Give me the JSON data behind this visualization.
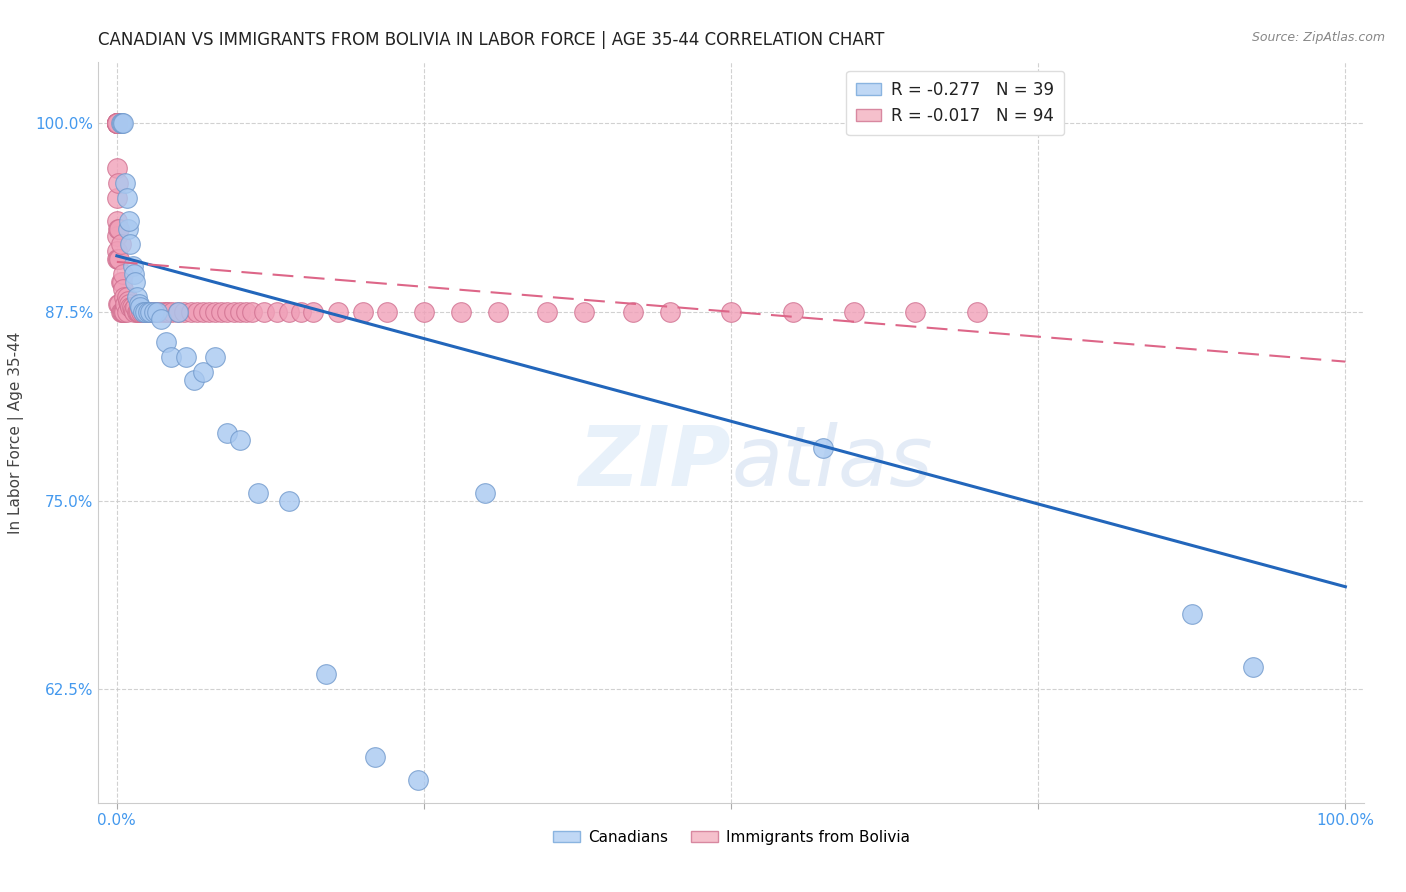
{
  "title": "CANADIAN VS IMMIGRANTS FROM BOLIVIA IN LABOR FORCE | AGE 35-44 CORRELATION CHART",
  "source": "Source: ZipAtlas.com",
  "ylabel": "In Labor Force | Age 35-44",
  "legend_r_blue": "R = -0.277",
  "legend_n_blue": "N = 39",
  "legend_r_pink": "R = -0.017",
  "legend_n_pink": "N = 94",
  "blue_color": "#a8c8f0",
  "blue_edge": "#7099cc",
  "pink_color": "#f0a0b8",
  "pink_edge": "#d07090",
  "trend_blue_color": "#2266bb",
  "trend_pink_color": "#dd6688",
  "canadians_x": [
    0.003,
    0.004,
    0.005,
    0.007,
    0.008,
    0.009,
    0.01,
    0.011,
    0.013,
    0.014,
    0.015,
    0.016,
    0.018,
    0.019,
    0.021,
    0.023,
    0.025,
    0.027,
    0.03,
    0.033,
    0.036,
    0.04,
    0.044,
    0.05,
    0.056,
    0.063,
    0.07,
    0.08,
    0.09,
    0.1,
    0.115,
    0.14,
    0.17,
    0.21,
    0.245,
    0.3,
    0.575,
    0.875,
    0.925
  ],
  "canadians_y": [
    1.0,
    1.0,
    1.0,
    0.96,
    0.95,
    0.93,
    0.935,
    0.92,
    0.905,
    0.9,
    0.895,
    0.885,
    0.88,
    0.878,
    0.875,
    0.875,
    0.875,
    0.875,
    0.875,
    0.875,
    0.87,
    0.855,
    0.845,
    0.875,
    0.845,
    0.83,
    0.835,
    0.845,
    0.795,
    0.79,
    0.755,
    0.75,
    0.635,
    0.58,
    0.565,
    0.755,
    0.785,
    0.675,
    0.64
  ],
  "bolivia_x": [
    0.0,
    0.0,
    0.0,
    0.0,
    0.0,
    0.0,
    0.0,
    0.0,
    0.0,
    0.0,
    0.0,
    0.0,
    0.0,
    0.0,
    0.0,
    0.0,
    0.0,
    0.0,
    0.0,
    0.001,
    0.001,
    0.001,
    0.001,
    0.002,
    0.002,
    0.002,
    0.003,
    0.003,
    0.003,
    0.004,
    0.004,
    0.005,
    0.005,
    0.005,
    0.006,
    0.006,
    0.007,
    0.008,
    0.008,
    0.009,
    0.01,
    0.011,
    0.012,
    0.013,
    0.014,
    0.015,
    0.016,
    0.017,
    0.018,
    0.02,
    0.021,
    0.023,
    0.025,
    0.027,
    0.03,
    0.032,
    0.035,
    0.038,
    0.04,
    0.042,
    0.045,
    0.05,
    0.055,
    0.06,
    0.065,
    0.07,
    0.075,
    0.08,
    0.085,
    0.09,
    0.095,
    0.1,
    0.105,
    0.11,
    0.12,
    0.13,
    0.14,
    0.15,
    0.16,
    0.18,
    0.2,
    0.22,
    0.25,
    0.28,
    0.31,
    0.35,
    0.38,
    0.42,
    0.45,
    0.5,
    0.55,
    0.6,
    0.65,
    0.7
  ],
  "bolivia_y": [
    1.0,
    1.0,
    1.0,
    1.0,
    1.0,
    1.0,
    1.0,
    1.0,
    1.0,
    1.0,
    1.0,
    1.0,
    1.0,
    0.97,
    0.95,
    0.935,
    0.925,
    0.915,
    0.91,
    0.96,
    0.93,
    0.91,
    0.88,
    0.93,
    0.91,
    0.88,
    0.92,
    0.895,
    0.875,
    0.895,
    0.875,
    0.9,
    0.89,
    0.875,
    0.885,
    0.875,
    0.88,
    0.885,
    0.875,
    0.882,
    0.88,
    0.878,
    0.878,
    0.876,
    0.875,
    0.878,
    0.875,
    0.875,
    0.875,
    0.875,
    0.875,
    0.875,
    0.875,
    0.875,
    0.875,
    0.875,
    0.875,
    0.875,
    0.875,
    0.875,
    0.875,
    0.875,
    0.875,
    0.875,
    0.875,
    0.875,
    0.875,
    0.875,
    0.875,
    0.875,
    0.875,
    0.875,
    0.875,
    0.875,
    0.875,
    0.875,
    0.875,
    0.875,
    0.875,
    0.875,
    0.875,
    0.875,
    0.875,
    0.875,
    0.875,
    0.875,
    0.875,
    0.875,
    0.875,
    0.875,
    0.875,
    0.875,
    0.875,
    0.875
  ],
  "blue_trend_x0": 0.0,
  "blue_trend_y0": 0.912,
  "blue_trend_x1": 1.0,
  "blue_trend_y1": 0.693,
  "pink_trend_x0": 0.0,
  "pink_trend_y0": 0.908,
  "pink_trend_x1": 1.0,
  "pink_trend_y1": 0.842,
  "xlim": [
    -0.015,
    1.015
  ],
  "ylim": [
    0.55,
    1.04
  ],
  "ytick_positions": [
    0.625,
    0.75,
    0.875,
    1.0
  ],
  "ytick_labels": [
    "62.5%",
    "75.0%",
    "87.5%",
    "100.0%"
  ],
  "xtick_left_label": "0.0%",
  "xtick_right_label": "100.0%"
}
